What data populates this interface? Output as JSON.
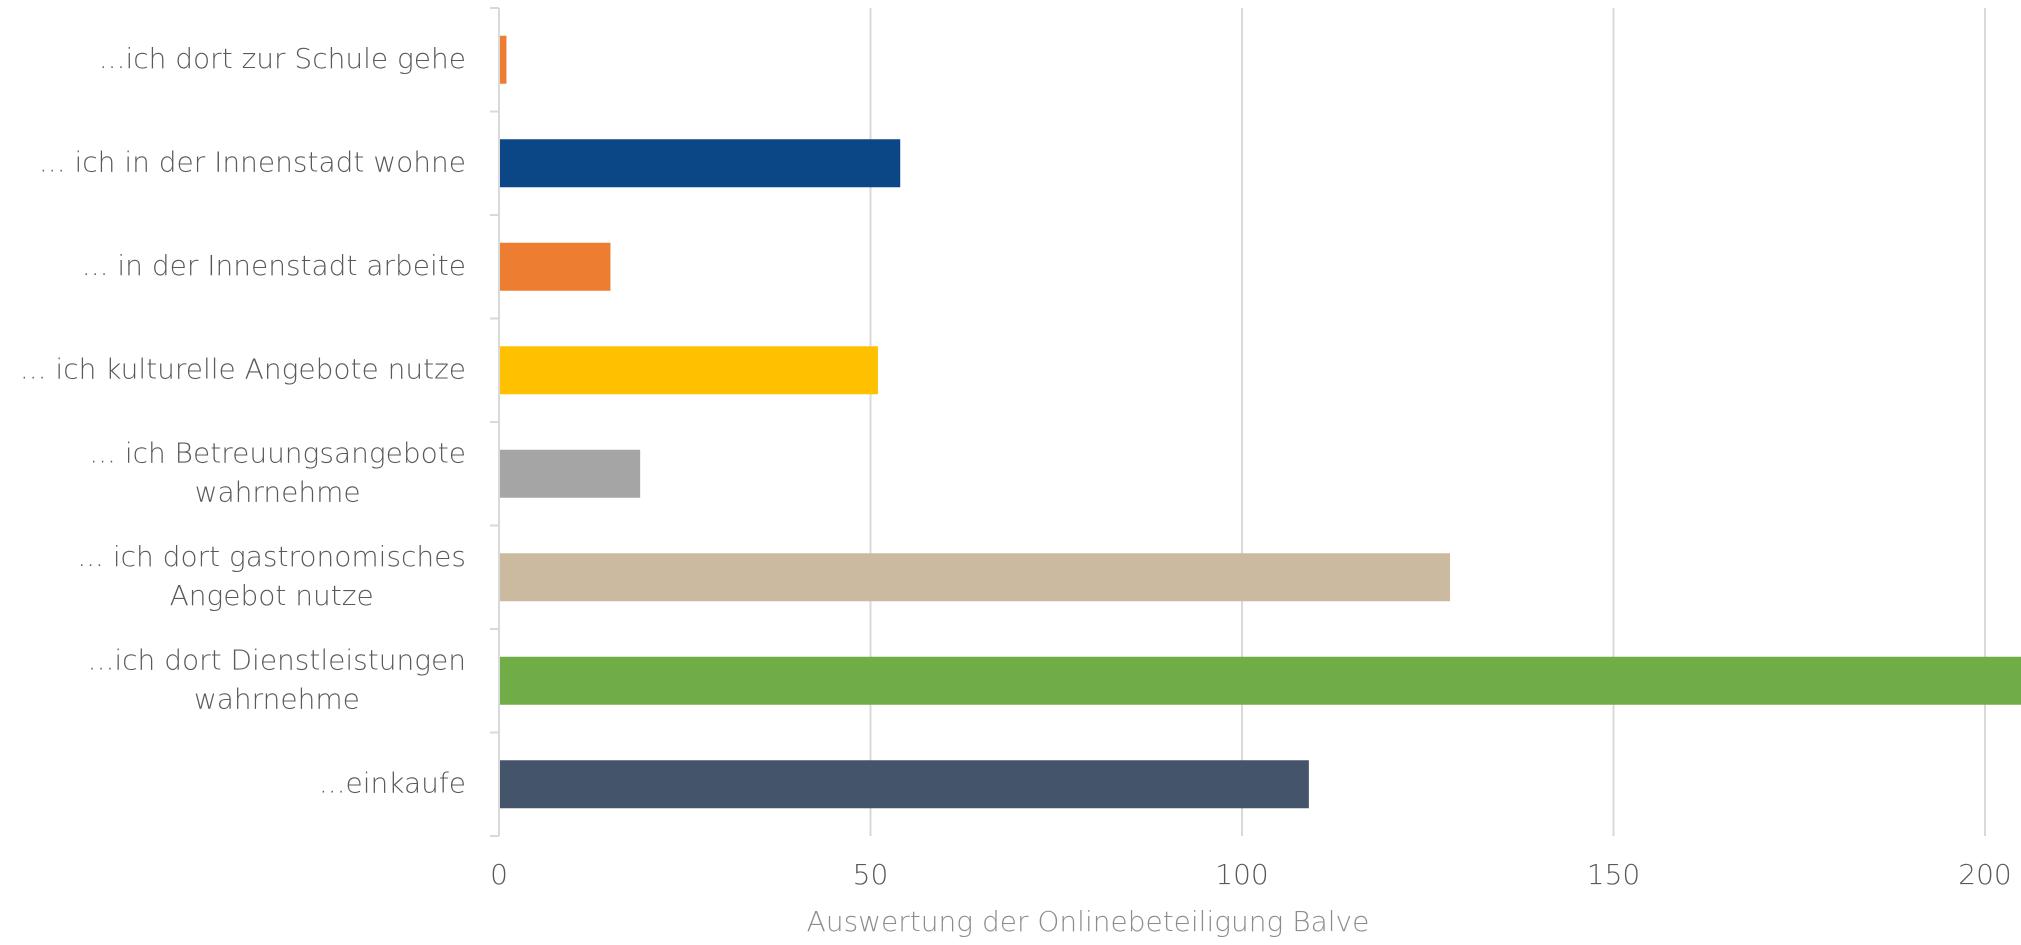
{
  "chart_data": {
    "type": "bar",
    "orientation": "horizontal",
    "categories": [
      [
        "...ich dort zur Schule gehe"
      ],
      [
        "... ich in der Innenstadt wohne"
      ],
      [
        "... in der Innenstadt arbeite"
      ],
      [
        "... ich kulturelle Angebote nutze"
      ],
      [
        "... ich Betreuungsangebote",
        "wahrnehme"
      ],
      [
        "... ich dort gastronomisches",
        "Angebot nutze"
      ],
      [
        "...ich dort Dienstleistungen",
        "wahrnehme"
      ],
      [
        "...einkaufe"
      ]
    ],
    "values": [
      1,
      54,
      15,
      51,
      19,
      128,
      215,
      109
    ],
    "colors": [
      "#ED7D31",
      "#0B4787",
      "#ED7D31",
      "#FFC000",
      "#A5A5A5",
      "#CBBAA0",
      "#70AD47",
      "#44546A"
    ],
    "xlabel": "Auswertung der Onlinebeteiligung Balve",
    "xlim": [
      0,
      200
    ],
    "xticks": [
      0,
      50,
      100,
      150,
      200
    ],
    "grid": true,
    "legend": "none"
  }
}
